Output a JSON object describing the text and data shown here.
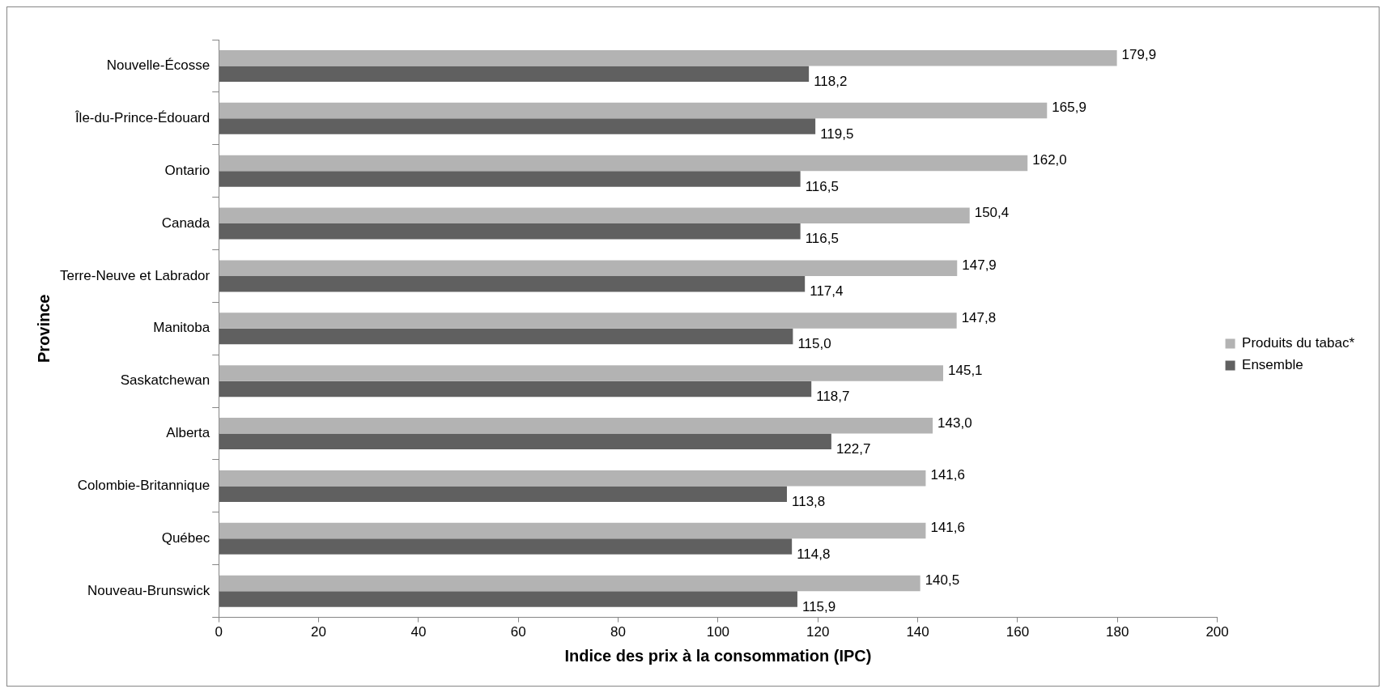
{
  "chart_data": {
    "type": "bar",
    "orientation": "horizontal",
    "xlabel": "Indice des prix à la consommation (IPC)",
    "ylabel": "Province",
    "categories": [
      "Nouvelle-Écosse",
      "Île-du-Prince-Édouard",
      "Ontario",
      "Canada",
      "Terre-Neuve et Labrador",
      "Manitoba",
      "Saskatchewan",
      "Alberta",
      "Colombie-Britannique",
      "Québec",
      "Nouveau-Brunswick"
    ],
    "series": [
      {
        "name": "Produits du tabac*",
        "color": "#b3b3b3",
        "values": [
          179.9,
          165.9,
          162.0,
          150.4,
          147.9,
          147.8,
          145.1,
          143.0,
          141.6,
          141.6,
          140.5
        ],
        "value_labels": [
          "179,9",
          "165,9",
          "162,0",
          "150,4",
          "147,9",
          "147,8",
          "145,1",
          "143,0",
          "141,6",
          "141,6",
          "140,5"
        ]
      },
      {
        "name": "Ensemble",
        "color": "#606060",
        "values": [
          118.2,
          119.5,
          116.5,
          116.5,
          117.4,
          115.0,
          118.7,
          122.7,
          113.8,
          114.8,
          115.9
        ],
        "value_labels": [
          "118,2",
          "119,5",
          "116,5",
          "116,5",
          "117,4",
          "115,0",
          "118,7",
          "122,7",
          "113,8",
          "114,8",
          "115,9"
        ]
      }
    ],
    "xlim": [
      0,
      200
    ],
    "xticks": [
      0,
      20,
      40,
      60,
      80,
      100,
      120,
      140,
      160,
      180,
      200
    ],
    "legend": "right",
    "grid": false
  }
}
